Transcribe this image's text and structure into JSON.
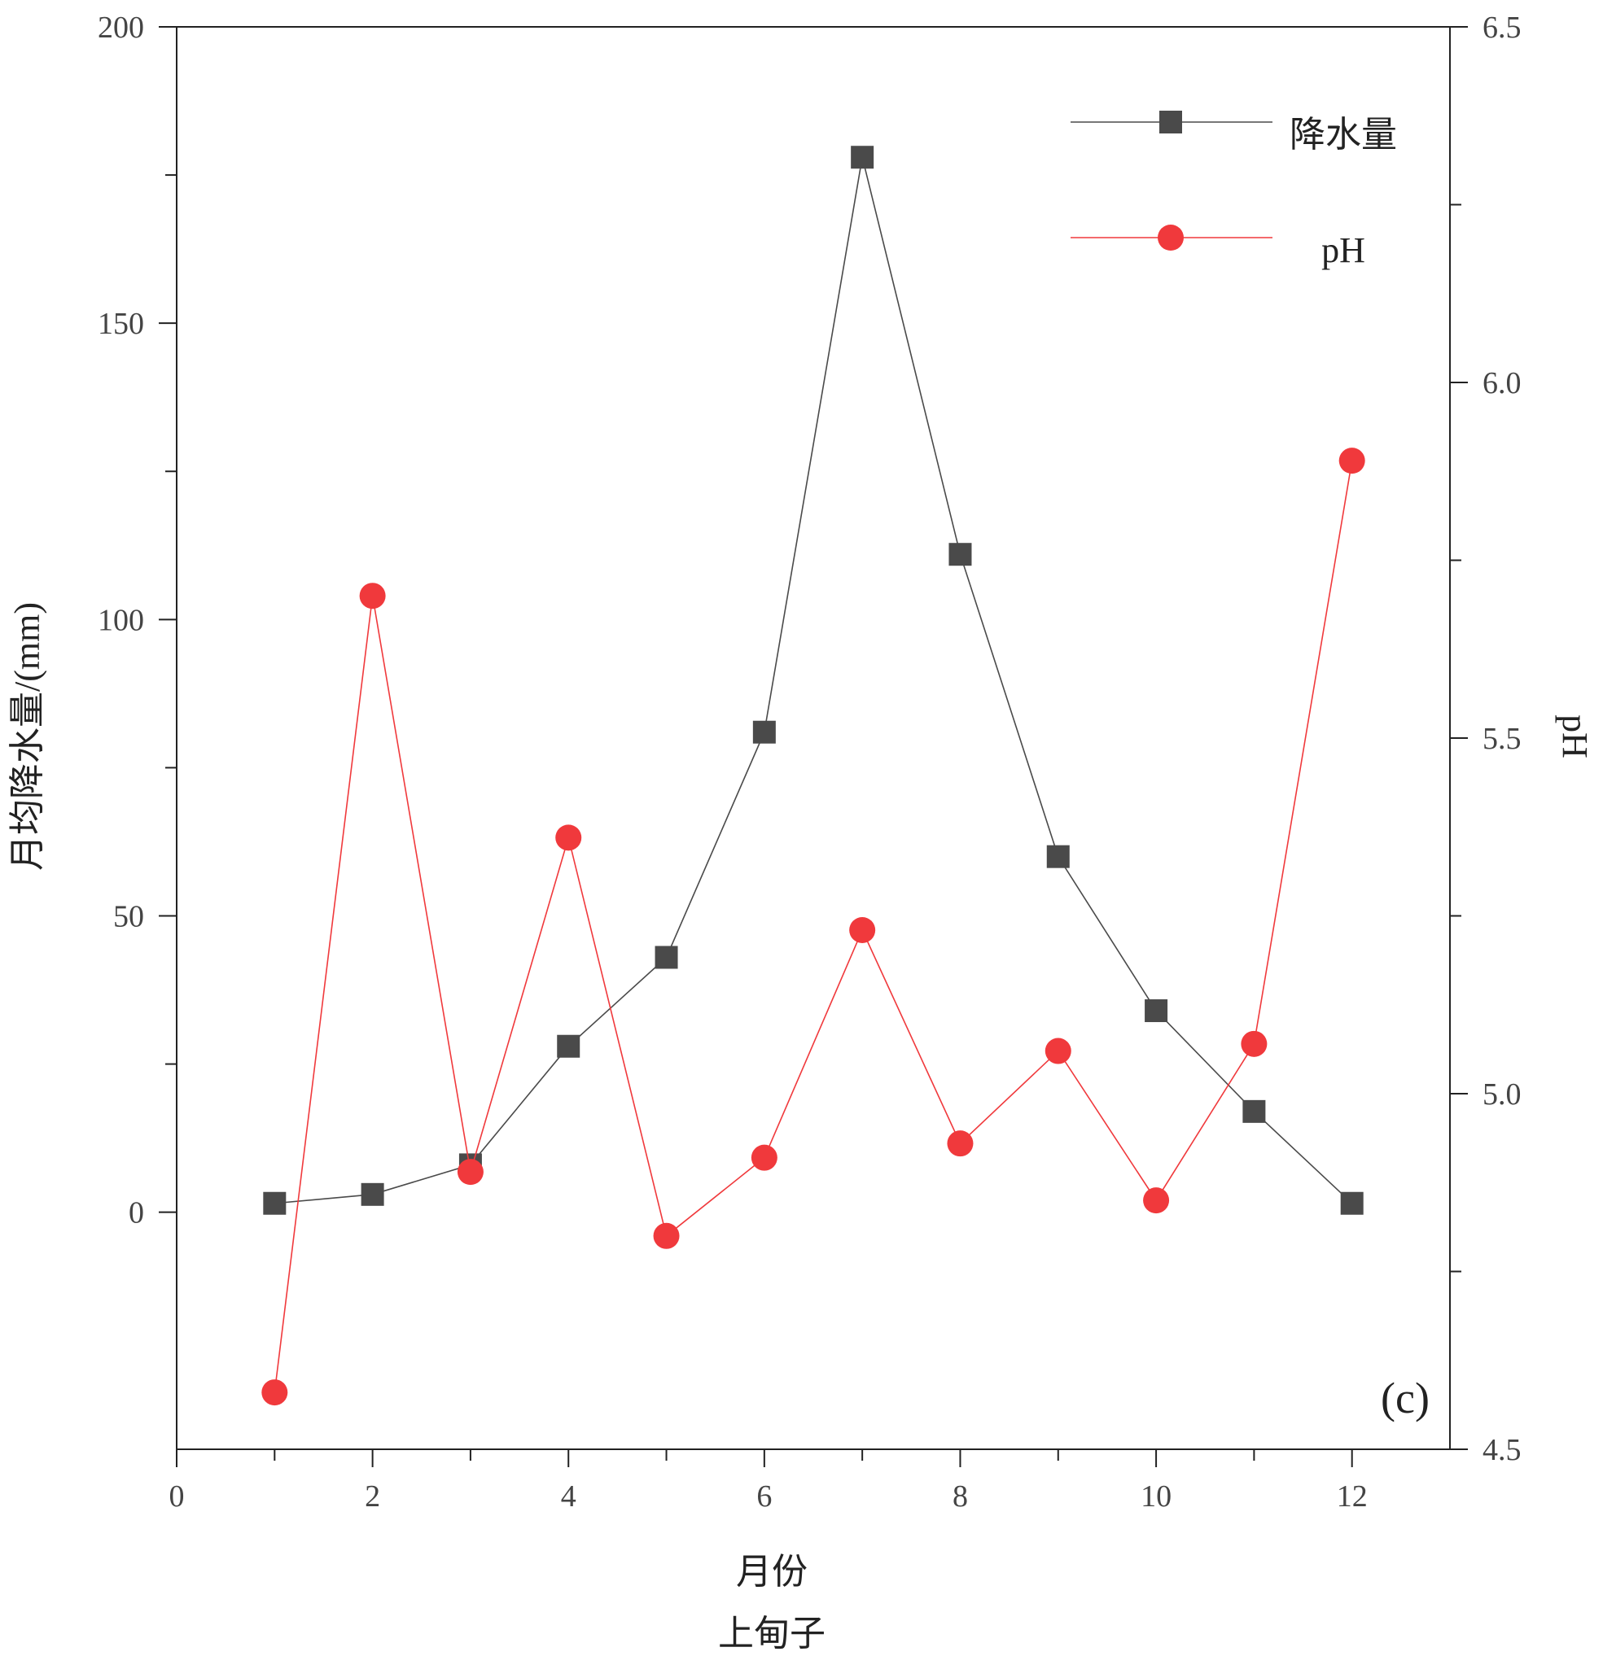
{
  "chart_data": {
    "type": "line",
    "x": [
      1,
      2,
      3,
      4,
      5,
      6,
      7,
      8,
      9,
      10,
      11,
      12
    ],
    "xlim": [
      0,
      13
    ],
    "x_ticks": [
      0,
      2,
      4,
      6,
      8,
      10,
      12
    ],
    "x_minor_ticks": [
      1,
      3,
      5,
      7,
      9,
      11
    ],
    "xlabel": "月份",
    "subtitle": "上甸子",
    "panel_label": "(c)",
    "y_left": {
      "label": "月均降水量/(mm)",
      "lim": [
        -40,
        200
      ],
      "ticks": [
        0,
        50,
        100,
        150,
        200
      ],
      "minor_ticks": [
        25,
        75,
        125,
        175
      ]
    },
    "y_right": {
      "label": "pH",
      "lim": [
        4.5,
        6.5
      ],
      "ticks": [
        4.5,
        5.0,
        5.5,
        6.0,
        6.5
      ],
      "tick_labels": [
        "4.5",
        "5.0",
        "5.5",
        "6.0",
        "6.5"
      ],
      "minor_ticks": [
        4.75,
        5.25,
        5.75,
        6.25
      ]
    },
    "series": [
      {
        "name": "降水量",
        "axis": "left",
        "marker": "square",
        "color": "#4a4a4a",
        "values": [
          1.5,
          3,
          8,
          28,
          43,
          81,
          178,
          111,
          60,
          34,
          17,
          1.5
        ]
      },
      {
        "name": "pH",
        "axis": "right",
        "marker": "circle",
        "color": "#f0393c",
        "values": [
          4.58,
          5.7,
          4.89,
          5.36,
          4.8,
          4.91,
          5.23,
          4.93,
          5.06,
          4.85,
          5.07,
          5.89
        ]
      }
    ],
    "legend_position": "top-right",
    "grid": false
  }
}
